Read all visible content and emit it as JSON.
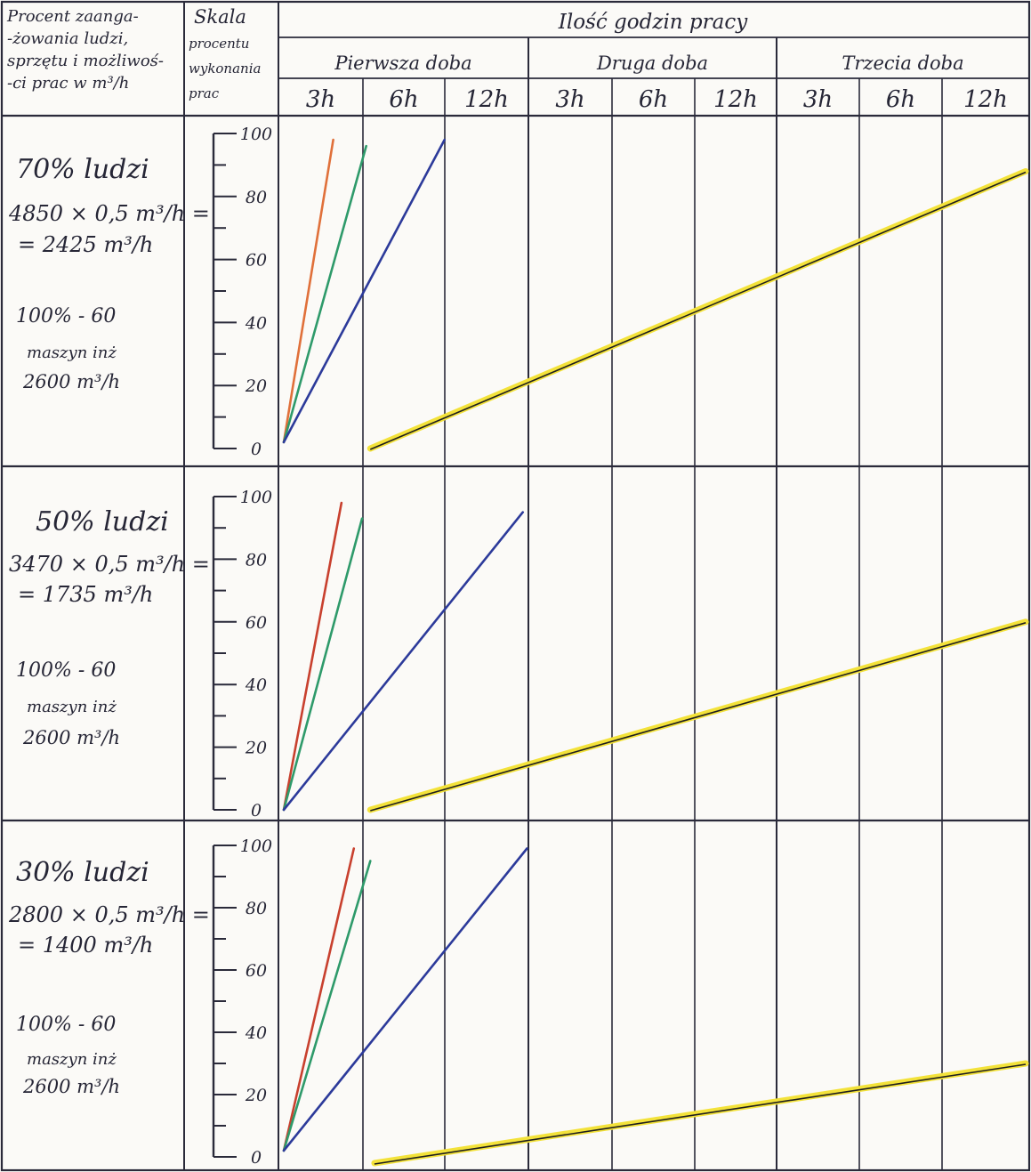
{
  "header": {
    "col1": [
      "Procent zaanga-",
      "-żowania ludzi,",
      "sprzętu i możliwoś-",
      "-ci prac w m³/h"
    ],
    "col2": [
      "Skala",
      "procentu",
      "wykonania",
      "prac"
    ],
    "main_title": "Ilość godzin pracy",
    "days": [
      "Pierwsza doba",
      "Druga doba",
      "Trzecia doba"
    ],
    "hours": [
      "3h",
      "6h",
      "12h"
    ]
  },
  "scale_ticks": [
    "0",
    "20",
    "40",
    "60",
    "80",
    "100"
  ],
  "rows": [
    {
      "pct": "70% ludzi",
      "calc1": "4850 × 0,5 m³/h =",
      "calc2": "= 2425 m³/h",
      "m1": "100% - 60",
      "m2": "maszyn inż",
      "m3": "2600 m³/h"
    },
    {
      "pct": "50% ludzi",
      "calc1": "3470 × 0,5 m³/h =",
      "calc2": "= 1735 m³/h",
      "m1": "100% - 60",
      "m2": "maszyn inż",
      "m3": "2600 m³/h"
    },
    {
      "pct": "30% ludzi",
      "calc1": "2800 × 0,5 m³/h =",
      "calc2": "= 1400 m³/h",
      "m1": "100% - 60",
      "m2": "maszyn inż",
      "m3": "2600 m³/h"
    }
  ],
  "colors": {
    "orange": "#e0703a",
    "red": "#c8402e",
    "green": "#2e9a6a",
    "blue": "#2c3a9a",
    "yellow": "#f3e23a",
    "ink": "#2a2a3a"
  },
  "chart_data": [
    {
      "type": "line",
      "title": "70% ludzi",
      "x_unit": "h",
      "ylim": [
        0,
        100
      ],
      "series": [
        {
          "color": "orange",
          "points": [
            [
              0,
              2
            ],
            [
              0.6,
              98
            ]
          ]
        },
        {
          "color": "green",
          "points": [
            [
              0,
              2
            ],
            [
              1.0,
              96
            ]
          ]
        },
        {
          "color": "blue",
          "points": [
            [
              0,
              2
            ],
            [
              1.95,
              98
            ]
          ]
        },
        {
          "color": "yellow",
          "points": [
            [
              1.05,
              0
            ],
            [
              9.0,
              88
            ]
          ]
        }
      ]
    },
    {
      "type": "line",
      "title": "50% ludzi",
      "x_unit": "h",
      "ylim": [
        0,
        100
      ],
      "series": [
        {
          "color": "red",
          "points": [
            [
              0,
              0
            ],
            [
              0.7,
              98
            ]
          ]
        },
        {
          "color": "green",
          "points": [
            [
              0,
              0
            ],
            [
              0.95,
              93
            ]
          ]
        },
        {
          "color": "blue",
          "points": [
            [
              0,
              0
            ],
            [
              2.9,
              95
            ]
          ]
        },
        {
          "color": "yellow",
          "points": [
            [
              1.05,
              0
            ],
            [
              9.0,
              60
            ]
          ]
        }
      ]
    },
    {
      "type": "line",
      "title": "30% ludzi",
      "x_unit": "h",
      "ylim": [
        0,
        100
      ],
      "series": [
        {
          "color": "red",
          "points": [
            [
              0,
              2
            ],
            [
              0.85,
              99
            ]
          ]
        },
        {
          "color": "green",
          "points": [
            [
              0,
              2
            ],
            [
              1.05,
              95
            ]
          ]
        },
        {
          "color": "blue",
          "points": [
            [
              0,
              2
            ],
            [
              2.95,
              99
            ]
          ]
        },
        {
          "color": "yellow",
          "points": [
            [
              1.1,
              -2
            ],
            [
              9.0,
              30
            ]
          ]
        }
      ]
    }
  ]
}
